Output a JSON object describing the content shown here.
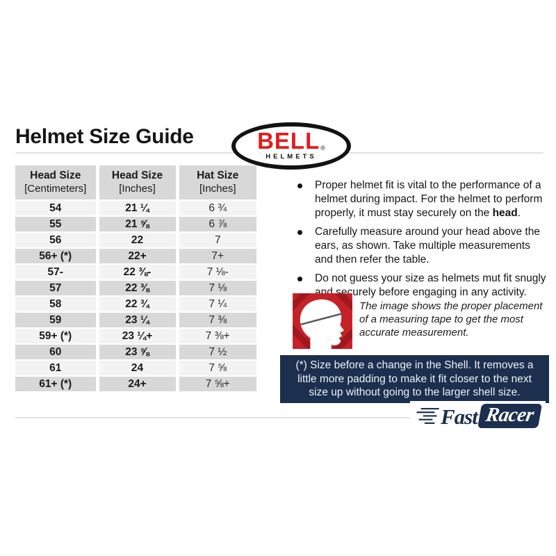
{
  "page": {
    "title": "Helmet Size Guide"
  },
  "bell_logo": {
    "name": "BELL",
    "registered": "®",
    "sub": "HELMETS"
  },
  "table": {
    "headers": [
      {
        "line1": "Head Size",
        "line2": "[Centimeters]"
      },
      {
        "line1": "Head Size",
        "line2": "[Inches]"
      },
      {
        "line1": "Hat Size",
        "line2": "[Inches]"
      }
    ],
    "rows": [
      [
        "54",
        "21 ¼",
        "6 ¾"
      ],
      [
        "55",
        "21 ⅝",
        "6 ⅞"
      ],
      [
        "56",
        "22",
        "7"
      ],
      [
        "56+ (*)",
        "22+",
        "7+"
      ],
      [
        "57-",
        "22 ⅜-",
        "7 ⅛-"
      ],
      [
        "57",
        "22 ⅜",
        "7 ⅛"
      ],
      [
        "58",
        "22 ¾",
        "7 ¼"
      ],
      [
        "59",
        "23 ¼",
        "7 ⅜"
      ],
      [
        "59+ (*)",
        "23 ¼+",
        "7 ⅜+"
      ],
      [
        "60",
        "23 ⅝",
        "7 ½"
      ],
      [
        "61",
        "24",
        "7 ⅝"
      ],
      [
        "61+ (*)",
        "24+",
        "7 ⅝+"
      ]
    ]
  },
  "bullets": [
    {
      "pre": "Proper helmet fit is vital to the performance of a helmet during impact. For the helmet to perform properly, it must stay securely on the ",
      "bold": "head",
      "post": "."
    },
    {
      "pre": "Carefully measure around your head above the ears, as shown. Take multiple measurements and then refer the table.",
      "bold": "",
      "post": ""
    },
    {
      "pre": "Do not guess your size as helmets mut fit snugly and securely before engaging in any activity.",
      "bold": "",
      "post": ""
    }
  ],
  "measure_note": "The image shows the proper placement of a measuring tape to get the most accurate measurement.",
  "shell_note": "(*) Size before a change in the Shell. It removes a little more padding to make it fit closer to the next size up without going to the larger shell size.",
  "fastracer_logo": {
    "fast": "Fast",
    "racer": "Racer"
  },
  "icons": {
    "head": "head-measurement-icon",
    "speed": "speed-lines-icon"
  },
  "colors": {
    "bell_red": "#e31b1e",
    "navy": "#1c2f4e",
    "icon_red": "#c52127",
    "row_light": "#f3f3f3",
    "row_gray": "#d8d8d8",
    "divider": "#e2e2e2",
    "text": "#1a1a1a"
  }
}
